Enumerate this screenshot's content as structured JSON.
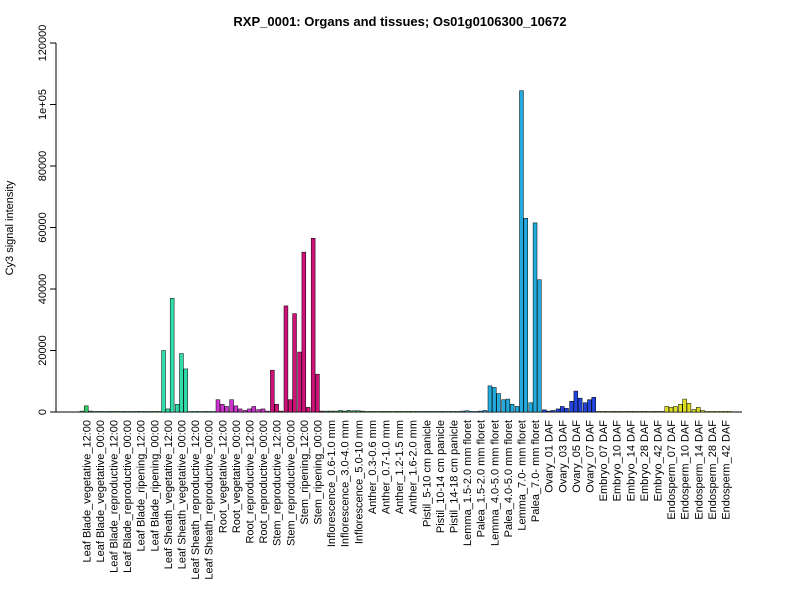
{
  "chart_data": {
    "type": "bar",
    "title": "RXP_0001: Organs and tissues; Os01g0106300_10672",
    "xlabel": "",
    "ylabel": "Cy3 signal intensity",
    "ylim": [
      0,
      120000
    ],
    "yticks": [
      0,
      20000,
      40000,
      60000,
      80000,
      100000,
      120000
    ],
    "ytick_labels": [
      "0",
      "20000",
      "40000",
      "60000",
      "80000",
      "1e+05",
      "120000"
    ],
    "grid": false,
    "legend": "none",
    "categories": [
      "Leaf Blade_vegetative_12:00",
      "Leaf Blade_vegetative_00:00",
      "Leaf Blade_reproductive_12:00",
      "Leaf Blade_reproductive_00:00",
      "Leaf Blade_ripening_12:00",
      "Leaf Blade_ripening_00:00",
      "Leaf Sheath_vegetative_12:00",
      "Leaf Sheath_vegetative_00:00",
      "Leaf Sheath_reproductive_12:00",
      "Leaf Sheath_reproductive_00:00",
      "Root_vegetative_12:00",
      "Root_vegetative_00:00",
      "Root_reproductive_12:00",
      "Root_reproductive_00:00",
      "Stem_reproductive_12:00",
      "Stem_reproductive_00:00",
      "Stem_ripening_12:00",
      "Stem_ripening_00:00",
      "Inflorescence_0.6-1.0 mm",
      "Inflorescence_3.0-4.0 mm",
      "Inflorescence_5.0-10 mm",
      "Anther_0.3-0.6 mm",
      "Anther_0.7-1.0 mm",
      "Anther_1.2-1.5 mm",
      "Anther_1.6-2.0 mm",
      "Pistil_5-10 cm panicle",
      "Pistil_10-14 cm panicle",
      "Pistil_14-18 cm panicle",
      "Lemma_1.5-2.0 mm floret",
      "Palea_1.5-2.0 mm floret",
      "Lemma_4.0-5.0 mm floret",
      "Palea_4.0-5.0 mm floret",
      "Lemma_7.0- mm floret",
      "Palea_7.0- mm floret",
      "Ovary_01 DAF",
      "Ovary_03 DAF",
      "Ovary_05 DAF",
      "Ovary_07 DAF",
      "Embryo_07 DAF",
      "Embryo_10 DAF",
      "Embryo_14 DAF",
      "Embryo_28 DAF",
      "Embryo_42 DAF",
      "Endosperm_07 DAF",
      "Endosperm_10 DAF",
      "Endosperm_14 DAF",
      "Endosperm_28 DAF",
      "Endosperm_42 DAF"
    ],
    "group_colors": [
      "#33cc66",
      "#33cc66",
      "#33cc66",
      "#33cc66",
      "#33cc66",
      "#33cc66",
      "#33ddaa",
      "#33ddaa",
      "#33ddaa",
      "#33ddaa",
      "#cc33cc",
      "#cc33cc",
      "#cc33cc",
      "#cc33cc",
      "#cc1177",
      "#cc1177",
      "#cc1177",
      "#cc1177",
      "#33aa55",
      "#33aa55",
      "#33aa55",
      "#55aa33",
      "#55aa33",
      "#55aa33",
      "#55aa33",
      "#33aa88",
      "#33aa88",
      "#33aa88",
      "#22aadd",
      "#22aadd",
      "#22aadd",
      "#22aadd",
      "#22aadd",
      "#22aadd",
      "#2244dd",
      "#2244dd",
      "#2244dd",
      "#2244dd",
      "#88aa22",
      "#88aa22",
      "#88aa22",
      "#88aa22",
      "#88aa22",
      "#dddd22",
      "#dddd22",
      "#dddd22",
      "#dddd22",
      "#dddd22"
    ],
    "values": [
      [
        300,
        2000,
        300
      ],
      [
        200,
        200,
        200
      ],
      [
        200,
        200,
        200
      ],
      [
        200,
        200,
        200
      ],
      [
        200,
        200,
        200
      ],
      [
        200,
        200,
        200
      ],
      [
        20000,
        1000,
        37000
      ],
      [
        2500,
        19000,
        14000
      ],
      [
        200,
        200,
        200
      ],
      [
        200,
        200,
        200
      ],
      [
        4000,
        2500,
        1800
      ],
      [
        4000,
        2000,
        1000
      ],
      [
        500,
        1000,
        1800
      ],
      [
        800,
        1000,
        300
      ],
      [
        13600,
        2500,
        300
      ],
      [
        34500,
        4000,
        32000
      ],
      [
        19500,
        52000,
        1500
      ],
      [
        56500,
        12300,
        300
      ],
      [
        300,
        300,
        300
      ],
      [
        500,
        300,
        500
      ],
      [
        400,
        400,
        300
      ],
      [
        200,
        200,
        200
      ],
      [
        200,
        200,
        200
      ],
      [
        200,
        200,
        200
      ],
      [
        200,
        200,
        200
      ],
      [
        200,
        200,
        200
      ],
      [
        200,
        200,
        200
      ],
      [
        200,
        200,
        200
      ],
      [
        300,
        400,
        200
      ],
      [
        200,
        300,
        500
      ],
      [
        8500,
        8000,
        6000
      ],
      [
        4000,
        4200,
        2500
      ],
      [
        1800,
        104500,
        63000
      ],
      [
        3000,
        61500,
        43000
      ],
      [
        700,
        300,
        500
      ],
      [
        1000,
        1800,
        1200
      ],
      [
        3500,
        6800,
        4500
      ],
      [
        3000,
        4000,
        4800
      ],
      [
        200,
        200,
        200
      ],
      [
        200,
        200,
        200
      ],
      [
        200,
        200,
        200
      ],
      [
        200,
        200,
        200
      ],
      [
        200,
        200,
        200
      ],
      [
        1800,
        1500,
        1800
      ],
      [
        2500,
        4200,
        2800
      ],
      [
        800,
        1500,
        500
      ],
      [
        200,
        200,
        200
      ],
      [
        200,
        200,
        200
      ]
    ]
  }
}
